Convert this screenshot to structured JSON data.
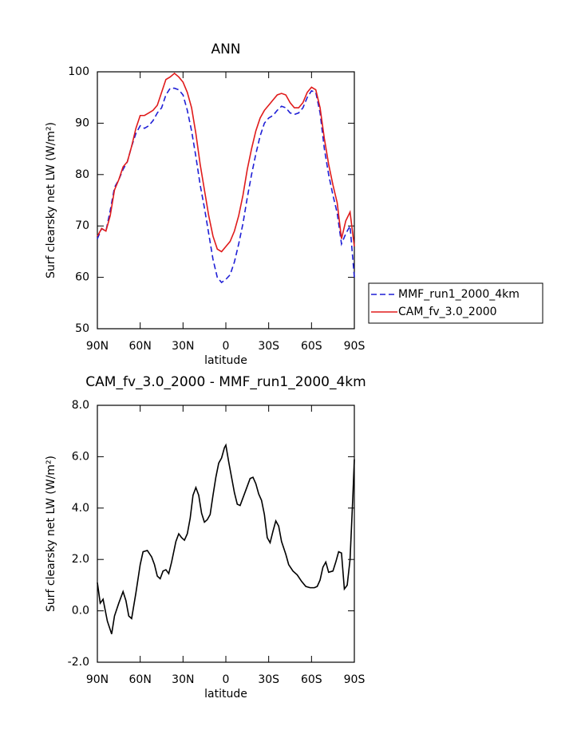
{
  "chart_data": [
    {
      "type": "line",
      "title": "ANN",
      "x_label": "latitude",
      "y_label": "Surf clearsky net LW (W/m²)",
      "x": [
        90,
        87,
        84,
        81,
        78,
        75,
        72,
        69,
        66,
        63,
        60,
        57,
        54,
        51,
        48,
        45,
        42,
        39,
        36,
        33,
        30,
        27,
        24,
        21,
        18,
        15,
        12,
        9,
        6,
        3,
        0,
        -3,
        -6,
        -9,
        -12,
        -15,
        -18,
        -21,
        -24,
        -27,
        -30,
        -33,
        -36,
        -39,
        -42,
        -45,
        -48,
        -51,
        -54,
        -57,
        -60,
        -63,
        -66,
        -69,
        -72,
        -75,
        -78,
        -81,
        -84,
        -87,
        -90
      ],
      "xlim": [
        90,
        -90
      ],
      "xticks": [
        {
          "value": 90,
          "label": "90N"
        },
        {
          "value": 60,
          "label": "60N"
        },
        {
          "value": 30,
          "label": "30N"
        },
        0,
        {
          "value": -30,
          "label": "30S"
        },
        {
          "value": -60,
          "label": "60S"
        },
        {
          "value": -90,
          "label": "90S"
        }
      ],
      "ylim": [
        50,
        100
      ],
      "yticks": [
        50,
        60,
        70,
        80,
        90,
        100
      ],
      "legend": "right",
      "series": [
        {
          "name": "MMF_run1_2000_4km",
          "color": "#1f1fd6",
          "dash": true,
          "values": [
            67.5,
            69.5,
            69,
            73,
            77.5,
            79,
            81,
            82.5,
            85.5,
            88,
            89.5,
            89,
            89.5,
            90.5,
            92,
            93,
            95.5,
            96.8,
            96.8,
            96.5,
            95.5,
            92.5,
            88.5,
            83.5,
            78,
            73.5,
            68.5,
            63.5,
            60,
            59,
            59.6,
            60.5,
            63,
            66.5,
            70.5,
            75.5,
            80,
            84,
            87.5,
            90,
            91,
            91.5,
            92.5,
            93.3,
            93,
            92,
            91.7,
            92,
            93,
            95,
            96.3,
            96,
            92,
            85,
            80,
            76,
            72.5,
            66.5,
            68.5,
            70,
            60
          ]
        },
        {
          "name": "CAM_fv_3.0_2000",
          "color": "#e01b1b",
          "dash": false,
          "values": [
            68,
            69.5,
            69,
            72,
            77,
            79,
            81.5,
            82.5,
            85.5,
            89,
            91.5,
            91.5,
            92,
            92.5,
            93.5,
            96,
            98.5,
            99,
            99.7,
            99,
            98,
            96,
            93,
            88,
            82,
            77,
            72,
            68,
            65.5,
            65,
            66,
            67,
            69,
            72,
            76,
            81,
            85,
            88.5,
            91,
            92.5,
            93.5,
            94.5,
            95.5,
            95.8,
            95.5,
            94,
            93,
            93,
            94,
            96,
            97,
            96.5,
            93,
            87,
            82,
            78,
            74.5,
            67.5,
            71,
            72.7,
            66
          ]
        }
      ]
    },
    {
      "type": "line",
      "title": "CAM_fv_3.0_2000 - MMF_run1_2000_4km",
      "x_label": "latitude",
      "y_label": "Surf clearsky net LW (W/m²)",
      "x": [
        90,
        88,
        86,
        83,
        80,
        78,
        75,
        72,
        70,
        68,
        66,
        63,
        60,
        58,
        55,
        52,
        50,
        48,
        46,
        44,
        42,
        40,
        38,
        35,
        33,
        31,
        29,
        27,
        25,
        23,
        21,
        19,
        17,
        15,
        13,
        11,
        9,
        7,
        5,
        3,
        1,
        0,
        -2,
        -4,
        -6,
        -8,
        -10,
        -12,
        -15,
        -17,
        -19,
        -21,
        -23,
        -25,
        -27,
        -29,
        -31,
        -33,
        -35,
        -37,
        -39,
        -42,
        -44,
        -47,
        -50,
        -53,
        -56,
        -59,
        -62,
        -64,
        -66,
        -68,
        -70,
        -72,
        -75,
        -77,
        -79,
        -81,
        -83,
        -85,
        -87,
        -89,
        -90
      ],
      "xlim": [
        90,
        -90
      ],
      "xticks": [
        {
          "value": 90,
          "label": "90N"
        },
        {
          "value": 60,
          "label": "60N"
        },
        {
          "value": 30,
          "label": "30N"
        },
        0,
        {
          "value": -30,
          "label": "30S"
        },
        {
          "value": -60,
          "label": "60S"
        },
        {
          "value": -90,
          "label": "90S"
        }
      ],
      "ylim": [
        -2,
        8
      ],
      "yticks": [
        {
          "value": -2,
          "label": "-2.0"
        },
        {
          "value": 0,
          "label": "0.0"
        },
        {
          "value": 2,
          "label": "2.0"
        },
        {
          "value": 4,
          "label": "4.0"
        },
        {
          "value": 6,
          "label": "6.0"
        },
        {
          "value": 8,
          "label": "8.0"
        }
      ],
      "color": "#000000",
      "values": [
        1.1,
        0.3,
        0.45,
        -0.4,
        -0.9,
        -0.2,
        0.3,
        0.75,
        0.4,
        -0.2,
        -0.3,
        0.7,
        1.8,
        2.3,
        2.35,
        2.1,
        1.8,
        1.35,
        1.25,
        1.55,
        1.6,
        1.45,
        1.9,
        2.7,
        3.0,
        2.85,
        2.75,
        3.0,
        3.6,
        4.5,
        4.8,
        4.5,
        3.8,
        3.45,
        3.55,
        3.75,
        4.5,
        5.2,
        5.75,
        5.95,
        6.35,
        6.45,
        5.8,
        5.2,
        4.6,
        4.15,
        4.1,
        4.4,
        4.85,
        5.15,
        5.2,
        4.95,
        4.55,
        4.3,
        3.75,
        2.85,
        2.65,
        3.1,
        3.5,
        3.3,
        2.7,
        2.2,
        1.8,
        1.55,
        1.4,
        1.15,
        0.95,
        0.9,
        0.9,
        0.95,
        1.2,
        1.7,
        1.9,
        1.5,
        1.55,
        1.9,
        2.3,
        2.25,
        0.85,
        1.0,
        2.0,
        4.5,
        5.9
      ]
    }
  ]
}
